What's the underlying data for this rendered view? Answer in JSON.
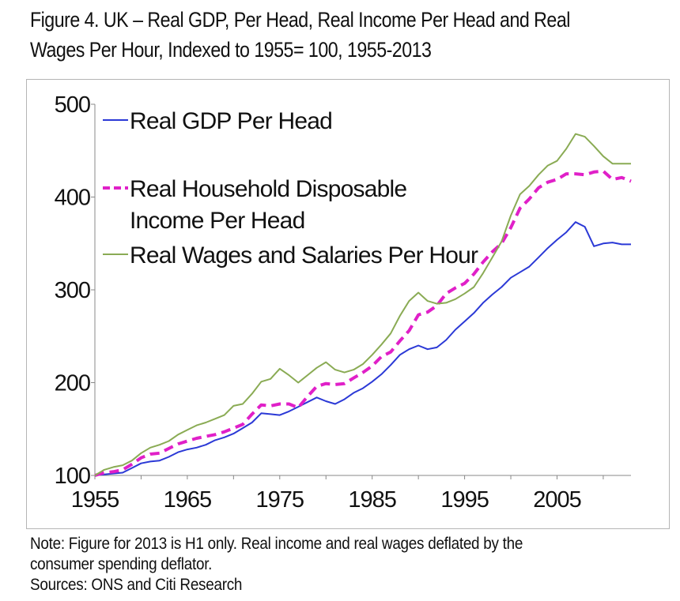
{
  "title_lines": [
    "Figure 4. UK – Real GDP, Per Head, Real Income Per Head and Real",
    "Wages Per Hour, Indexed to 1955= 100, 1955-2013"
  ],
  "notes": [
    "Note: Figure for 2013 is H1 only. Real income and real wages deflated by the",
    "consumer spending deflator.",
    "Sources: ONS and Citi Research"
  ],
  "chart_data": {
    "type": "line",
    "title": "Figure 4. UK – Real GDP, Per Head, Real Income Per Head and Real Wages Per Hour, Indexed to 1955= 100, 1955-2013",
    "xlabel": "",
    "ylabel": "",
    "xlim": [
      1955,
      2013
    ],
    "ylim": [
      100,
      500
    ],
    "x_ticks": [
      1955,
      1965,
      1975,
      1985,
      1995,
      2005
    ],
    "y_ticks": [
      100,
      200,
      300,
      400,
      500
    ],
    "grid": false,
    "legend_position": "top-left",
    "x": [
      1955,
      1956,
      1957,
      1958,
      1959,
      1960,
      1961,
      1962,
      1963,
      1964,
      1965,
      1966,
      1967,
      1968,
      1969,
      1970,
      1971,
      1972,
      1973,
      1974,
      1975,
      1976,
      1977,
      1978,
      1979,
      1980,
      1981,
      1982,
      1983,
      1984,
      1985,
      1986,
      1987,
      1988,
      1989,
      1990,
      1991,
      1992,
      1993,
      1994,
      1995,
      1996,
      1997,
      1998,
      1999,
      2000,
      2001,
      2002,
      2003,
      2004,
      2005,
      2006,
      2007,
      2008,
      2009,
      2010,
      2011,
      2012,
      2013
    ],
    "series": [
      {
        "name": "Real GDP Per Head",
        "color": "#2b39d6",
        "dash": "solid",
        "values": [
          100,
          101,
          102,
          103,
          108,
          113,
          115,
          116,
          120,
          125,
          128,
          130,
          133,
          138,
          141,
          145,
          151,
          157,
          167,
          166,
          165,
          169,
          174,
          179,
          184,
          180,
          177,
          182,
          189,
          194,
          201,
          209,
          219,
          230,
          236,
          240,
          236,
          238,
          246,
          257,
          266,
          275,
          286,
          295,
          303,
          313,
          319,
          325,
          335,
          345,
          354,
          362,
          373,
          368,
          347,
          350,
          351,
          349,
          349
        ]
      },
      {
        "name": "Real Household Disposable Income Per Head",
        "color": "#e020c8",
        "dash": "dashed",
        "values": [
          100,
          103,
          104,
          106,
          112,
          119,
          123,
          124,
          129,
          134,
          137,
          140,
          142,
          144,
          147,
          151,
          155,
          166,
          176,
          175,
          177,
          177,
          173,
          185,
          196,
          199,
          198,
          199,
          205,
          211,
          218,
          228,
          233,
          245,
          256,
          273,
          276,
          283,
          296,
          302,
          307,
          317,
          330,
          341,
          350,
          367,
          388,
          398,
          410,
          416,
          419,
          425,
          425,
          424,
          427,
          428,
          419,
          421,
          417
        ]
      },
      {
        "name": "Real Wages and Salaries Per Hour",
        "color": "#8aab54",
        "dash": "solid",
        "values": [
          100,
          106,
          109,
          111,
          116,
          124,
          130,
          133,
          137,
          144,
          149,
          154,
          157,
          161,
          165,
          175,
          177,
          188,
          201,
          204,
          215,
          208,
          200,
          208,
          216,
          222,
          214,
          211,
          214,
          220,
          230,
          241,
          253,
          272,
          288,
          297,
          288,
          285,
          286,
          290,
          296,
          303,
          318,
          335,
          352,
          380,
          403,
          412,
          424,
          434,
          439,
          452,
          468,
          465,
          455,
          444,
          436,
          436,
          436
        ]
      }
    ]
  }
}
